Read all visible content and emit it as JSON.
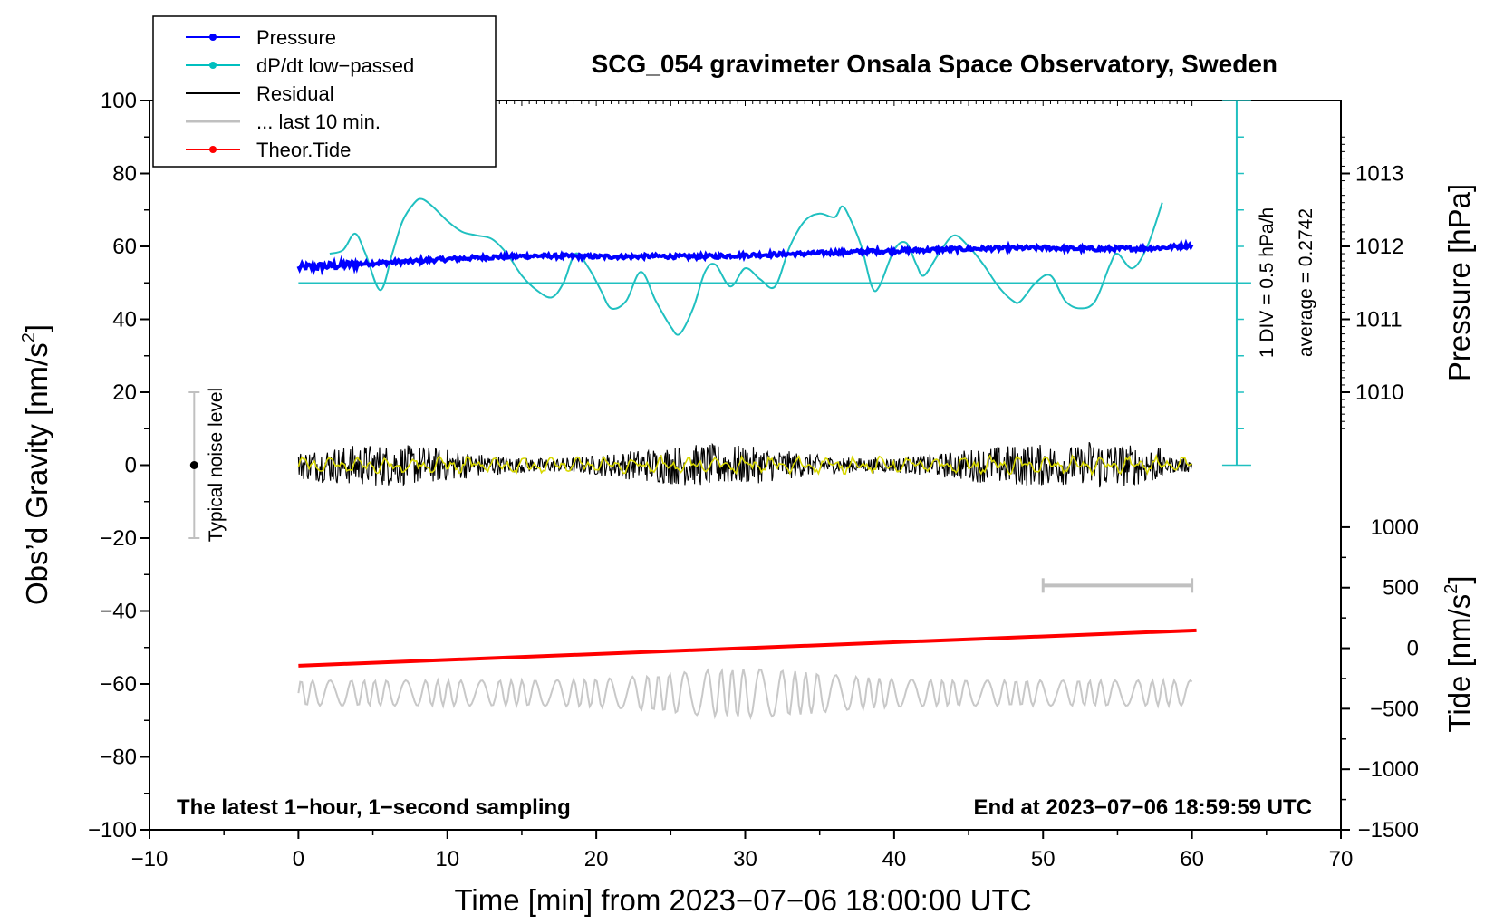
{
  "chart_data": {
    "type": "line",
    "title": "SCG_054 gravimeter Onsala Space Observatory, Sweden",
    "xlabel": "Time [min] from 2023−07−06 18:00:00 UTC",
    "ylabel_left": "Obs’d Gravity [nm/s",
    "ylabel_left_sup": "2",
    "ylabel_left_end": "]",
    "ylabel_right_pressure": "Pressure [hPa]",
    "ylabel_right_tide": "Tide [nm/s",
    "ylabel_right_tide_sup": "2",
    "ylabel_right_tide_end": "]",
    "xlim": [
      -10,
      70
    ],
    "ylim_left": [
      -100,
      100
    ],
    "x_ticks": [
      -10,
      0,
      10,
      20,
      30,
      40,
      50,
      60,
      70
    ],
    "x_tick_labels": [
      "−10",
      "0",
      "10",
      "20",
      "30",
      "40",
      "50",
      "60",
      "70"
    ],
    "y_ticks": [
      100,
      80,
      60,
      40,
      20,
      0,
      -20,
      -40,
      -60,
      -80,
      -100
    ],
    "y_tick_labels": [
      "100",
      "80",
      "60",
      "40",
      "20",
      "0",
      "−20",
      "−40",
      "−60",
      "−80",
      "−100"
    ],
    "pressure_ticks": [
      1013,
      1012,
      1011,
      1010
    ],
    "pressure_tick_labels": [
      "1013",
      "1012",
      "1011",
      "1010"
    ],
    "pressure_gravity_map": {
      "1012": 60,
      "1011": 40
    },
    "tide_ticks": [
      1000,
      500,
      0,
      -500,
      -1000,
      -1500
    ],
    "tide_tick_labels": [
      "1000",
      "500",
      "0",
      "−500",
      "−1000",
      "−1500"
    ],
    "tide_gravity_map": {
      "1000": -17,
      "-1500": -100
    },
    "legend": [
      {
        "label": "Pressure",
        "color": "#0000ff",
        "marker": true
      },
      {
        "label": "dP/dt low−passed",
        "color": "#00bfbf",
        "marker": true
      },
      {
        "label": "Residual",
        "color": "#000000",
        "marker": false
      },
      {
        "label": "... last 10 min.",
        "color": "#c0c0c0",
        "marker": false
      },
      {
        "label": "Theor.Tide",
        "color": "#ff0000",
        "marker": true
      }
    ],
    "legend_position": "top-left",
    "annotations": {
      "scale_div": "1 DIV = 0.5 hPa/h",
      "average": "average = 0.2742",
      "noise": "Typical noise level",
      "bottom_left": "The latest 1−hour, 1−second sampling",
      "bottom_right": "End at 2023−07−06 18:59:59 UTC"
    },
    "noise_bar": {
      "x": -7,
      "center": 0,
      "low": -20,
      "high": 20
    },
    "last10_bar": {
      "x_start": 50,
      "x_end": 60,
      "y": -33
    },
    "dpdt_baseline_y": 50,
    "dpdt_scale_axis": {
      "x": 63,
      "y_min": 0,
      "y_max": 100,
      "divisions": 10
    },
    "series": [
      {
        "name": "Pressure",
        "color": "#0000ff",
        "x": [
          0,
          2,
          4,
          6,
          8,
          10,
          12,
          14,
          16,
          18,
          20,
          22,
          24,
          26,
          28,
          30,
          32,
          34,
          36,
          38,
          40,
          42,
          44,
          46,
          48,
          50,
          52,
          54,
          56,
          58,
          60
        ],
        "y": [
          54.2,
          54.6,
          55.2,
          55.6,
          56.0,
          56.5,
          56.9,
          57.2,
          57.4,
          57.3,
          57.2,
          57.2,
          57.3,
          57.2,
          57.3,
          57.6,
          57.8,
          58.0,
          58.3,
          58.6,
          58.8,
          59.0,
          59.2,
          59.4,
          59.5,
          59.6,
          59.4,
          59.3,
          59.4,
          59.6,
          60.4
        ]
      },
      {
        "name": "dP/dt low-passed",
        "color": "#20c0c0",
        "x": [
          2.1,
          3,
          3.8,
          4.5,
          5.5,
          6.3,
          7,
          7.8,
          8.3,
          9,
          10,
          11,
          12,
          13,
          14,
          15,
          16,
          17,
          17.8,
          18.6,
          19.5,
          20.3,
          21,
          22,
          23,
          24,
          25,
          25.6,
          26.5,
          27.3,
          28,
          29,
          30,
          31,
          32,
          33,
          34,
          35,
          36,
          36.5,
          37,
          37.8,
          38.5,
          39,
          40,
          40.8,
          41.5,
          42,
          43,
          44,
          45,
          46,
          47,
          48,
          48.5,
          49.5,
          50.5,
          51.5,
          52.5,
          53.5,
          54.5,
          55,
          56,
          57,
          58
        ],
        "y": [
          58,
          59,
          63.5,
          58,
          48,
          58,
          67,
          72,
          73,
          71,
          67,
          64,
          63,
          62,
          58,
          52,
          48,
          46,
          50,
          58,
          54,
          48,
          43,
          45,
          53,
          45,
          38,
          36,
          43,
          53,
          55,
          49,
          54,
          51,
          49,
          60,
          67,
          69,
          68,
          71,
          68,
          60,
          49,
          49,
          59,
          61,
          55,
          52,
          58,
          63,
          60,
          55,
          49,
          45,
          45,
          50,
          52,
          45,
          43,
          45,
          55,
          58,
          54,
          60,
          72
        ]
      },
      {
        "name": "Theor.Tide",
        "color": "#ff0000",
        "x": [
          0,
          60.3
        ],
        "y": [
          -55,
          -45.3
        ]
      }
    ],
    "residual": {
      "x_start": 0,
      "x_end": 60,
      "amplitude": 5.5,
      "color": "#000000",
      "overlay_color": "#d8d800"
    },
    "last10_trace": {
      "x_start": 0,
      "x_end": 60,
      "center": -62.5,
      "amplitude": 3.5,
      "color": "#c8c8c8"
    },
    "colors": {
      "axis": "#000000",
      "grid_frame": "#000000",
      "legend_border": "#000000"
    }
  }
}
